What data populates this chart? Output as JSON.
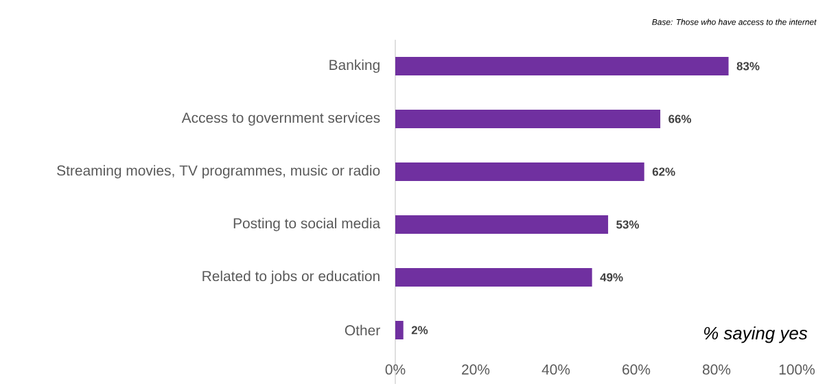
{
  "chart_data": {
    "type": "bar",
    "orientation": "horizontal",
    "categories": [
      "Banking",
      "Access to government services",
      "Streaming movies, TV programmes, music or radio",
      "Posting to social media",
      "Related to jobs or education",
      "Other"
    ],
    "values": [
      83,
      66,
      62,
      53,
      49,
      2
    ],
    "value_labels": [
      "83%",
      "66%",
      "62%",
      "53%",
      "49%",
      "2%"
    ],
    "color": "#7030a0",
    "xlim": [
      0,
      100
    ],
    "xticks": [
      {
        "value": 0,
        "label": "0%"
      },
      {
        "value": 20,
        "label": "20%"
      },
      {
        "value": 40,
        "label": "40%"
      },
      {
        "value": 60,
        "label": "60%"
      },
      {
        "value": 80,
        "label": "80%"
      },
      {
        "value": 100,
        "label": "100%"
      }
    ],
    "xlabel": "% saying yes",
    "annotations": [
      "Base: Those who have access to the internet"
    ]
  }
}
